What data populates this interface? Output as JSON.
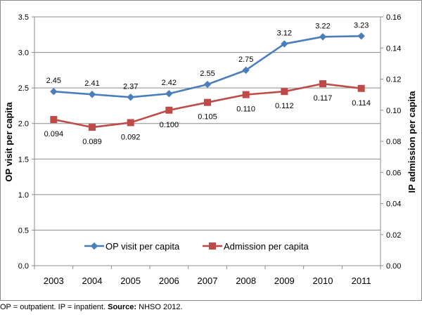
{
  "chart_data": {
    "type": "line",
    "categories": [
      "2003",
      "2004",
      "2005",
      "2006",
      "2007",
      "2008",
      "2009",
      "2010",
      "2011"
    ],
    "series": [
      {
        "name": "OP visit per capita",
        "axis": "left",
        "color": "#4a7ebb",
        "marker": "diamond",
        "values": [
          2.45,
          2.41,
          2.37,
          2.42,
          2.55,
          2.75,
          3.12,
          3.22,
          3.23
        ],
        "labels": [
          "2.45",
          "2.41",
          "2.37",
          "2.42",
          "2.55",
          "2.75",
          "3.12",
          "3.22",
          "3.23"
        ]
      },
      {
        "name": "Admission per capita",
        "axis": "right",
        "color": "#be4b48",
        "marker": "square",
        "values": [
          0.094,
          0.089,
          0.092,
          0.1,
          0.105,
          0.11,
          0.112,
          0.117,
          0.114
        ],
        "labels": [
          "0.094",
          "0.089",
          "0.092",
          "0.100",
          "0.105",
          "0.110",
          "0.112",
          "0.117",
          "0.114"
        ]
      }
    ],
    "ylabel_left": "OP visit per capita",
    "ylabel_right": "IP admission per capita",
    "ylim_left": [
      0,
      3.5
    ],
    "ylim_right": [
      0,
      0.16
    ],
    "yticks_left": [
      "0.0",
      "0.5",
      "1.0",
      "1.5",
      "2.0",
      "2.5",
      "3.0",
      "3.5"
    ],
    "yticks_right": [
      "0.00",
      "0.02",
      "0.04",
      "0.06",
      "0.08",
      "0.10",
      "0.12",
      "0.14",
      "0.16"
    ],
    "grid": true,
    "legend_position": "inside-bottom-center"
  },
  "caption": {
    "prefix": "OP = outpatient. IP = inpatient.",
    "source_label": "Source:",
    "source_text": "NHSO 2012."
  }
}
